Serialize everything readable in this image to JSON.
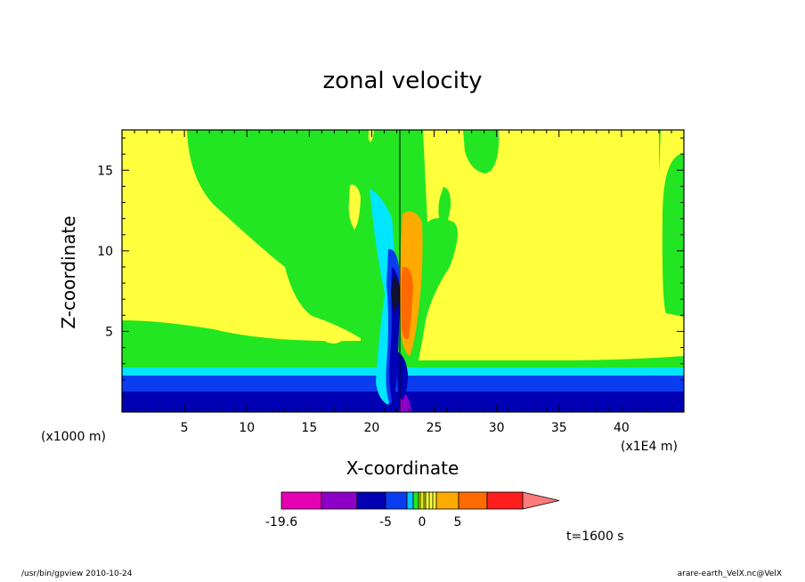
{
  "chart_data": {
    "type": "heatmap",
    "title": "zonal velocity",
    "xlabel": "X-coordinate",
    "ylabel": "Z-coordinate",
    "x_unit_label": "(x1E4 m)",
    "y_unit_label": "(x1000 m)",
    "xlim": [
      0,
      45
    ],
    "ylim": [
      0,
      17.5
    ],
    "x_ticks": [
      5,
      10,
      15,
      20,
      25,
      30,
      35,
      40
    ],
    "y_ticks": [
      5,
      10,
      15
    ],
    "colorbar": {
      "tick_labels": [
        "-19.6",
        "-5",
        "0",
        "5"
      ],
      "colors": [
        "#e600b4",
        "#8c00c8",
        "#0000b4",
        "#0a3cf0",
        "#00c8ff",
        "#22e622",
        "#e0f000",
        "#ffff3c",
        "#ffaa00",
        "#ff6a00",
        "#ff1e1e",
        "#ff7a7a"
      ]
    },
    "description_regions": {
      "background": "weak positive (yellow/green bands)",
      "surface_layer": "negative (blue) near z < 3",
      "center_jet": "strong negative core near x=22, z=6-10 and strong positive core near x=22.5, z=6-9"
    }
  },
  "time_label": "t=1600 s",
  "footer": {
    "left": "/usr/bin/gpview   2010-10-24",
    "right": "arare-earth_VelX.nc@VelX"
  },
  "colors": {
    "green": "#22e622",
    "yellow": "#ffff3c",
    "cyan": "#00e6ff",
    "blue1": "#0a3cf0",
    "blue2": "#0000b4",
    "purple": "#8c00c8",
    "orange1": "#ffaa00",
    "orange2": "#ff6a00"
  }
}
